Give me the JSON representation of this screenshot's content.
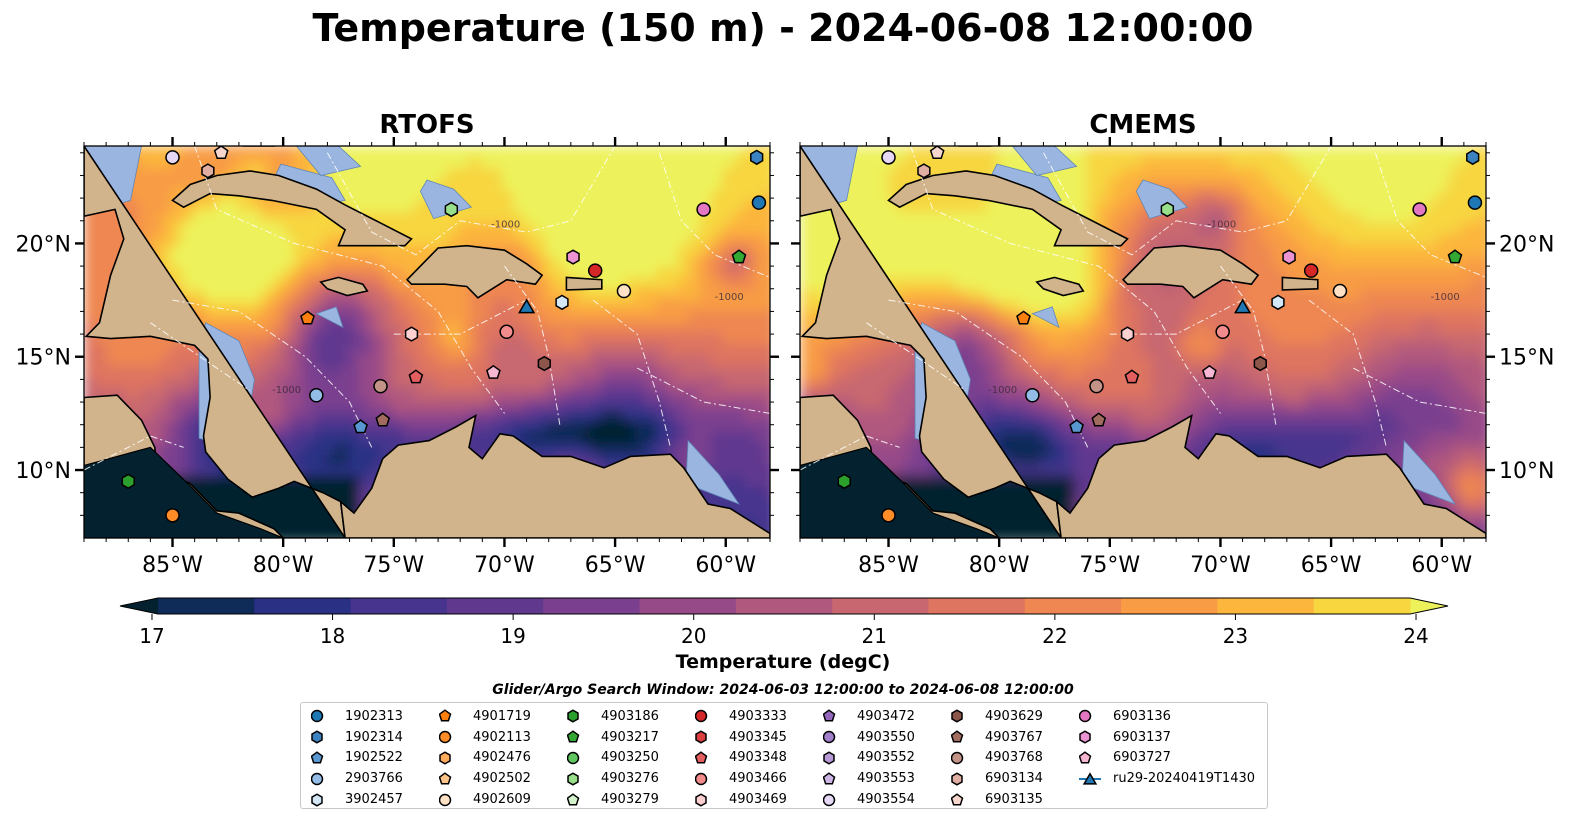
{
  "title": "Temperature (150 m) - 2024-06-08 12:00:00",
  "panels": [
    {
      "id": "rtofs",
      "title": "RTOFS"
    },
    {
      "id": "cmems",
      "title": "CMEMS"
    }
  ],
  "map": {
    "lon_range": [
      -89,
      -58
    ],
    "lat_range": [
      7,
      24.3
    ],
    "lon_ticks": [
      {
        "value": -85,
        "label": "85°W"
      },
      {
        "value": -80,
        "label": "80°W"
      },
      {
        "value": -75,
        "label": "75°W"
      },
      {
        "value": -70,
        "label": "70°W"
      },
      {
        "value": -65,
        "label": "65°W"
      },
      {
        "value": -60,
        "label": "60°W"
      }
    ],
    "lat_ticks": [
      {
        "value": 10,
        "label": "10°N"
      },
      {
        "value": 15,
        "label": "15°N"
      },
      {
        "value": 20,
        "label": "20°N"
      }
    ],
    "contour_label": "-1000",
    "colors": {
      "land": "#d2b48c",
      "shelf": "#9ab6e0",
      "coast": "#000000"
    }
  },
  "colorbar": {
    "label": "Temperature (degC)",
    "min": 16.5,
    "max": 24.5,
    "ticks": [
      {
        "value": 17,
        "label": "17"
      },
      {
        "value": 18,
        "label": "18"
      },
      {
        "value": 19,
        "label": "19"
      },
      {
        "value": 20,
        "label": "20"
      },
      {
        "value": 21,
        "label": "21"
      },
      {
        "value": 22,
        "label": "22"
      },
      {
        "value": 23,
        "label": "23"
      },
      {
        "value": 24,
        "label": "24"
      }
    ],
    "colors": [
      "#03212e",
      "#0f2b58",
      "#2a3185",
      "#46348e",
      "#60398f",
      "#7a3f8f",
      "#974a88",
      "#b1587e",
      "#c86770",
      "#de7561",
      "#ee8751",
      "#f89c45",
      "#fcb53d",
      "#f7d63f",
      "#edf25b"
    ]
  },
  "search_window": "Glider/Argo Search Window: 2024-06-03 12:00:00 to 2024-06-08 12:00:00",
  "legend": [
    {
      "label": "1902313",
      "marker": "circle",
      "color": "#1f77b4"
    },
    {
      "label": "1902314",
      "marker": "hexagon",
      "color": "#3b83c0"
    },
    {
      "label": "1902522",
      "marker": "pentagon",
      "color": "#5897d0"
    },
    {
      "label": "2903766",
      "marker": "circle",
      "color": "#93bde6"
    },
    {
      "label": "3902457",
      "marker": "hexagon",
      "color": "#d4e7f7"
    },
    {
      "label": "4901719",
      "marker": "pentagon",
      "color": "#ff7f0e"
    },
    {
      "label": "4902113",
      "marker": "circle",
      "color": "#ff8c26"
    },
    {
      "label": "4902476",
      "marker": "hexagon",
      "color": "#ffab5e"
    },
    {
      "label": "4902502",
      "marker": "pentagon",
      "color": "#ffc48a"
    },
    {
      "label": "4902609",
      "marker": "circle",
      "color": "#ffe1c6"
    },
    {
      "label": "4903186",
      "marker": "hexagon",
      "color": "#2ca02c"
    },
    {
      "label": "4903217",
      "marker": "pentagon",
      "color": "#33a833"
    },
    {
      "label": "4903250",
      "marker": "circle",
      "color": "#5fc55f"
    },
    {
      "label": "4903276",
      "marker": "hexagon",
      "color": "#98df8a"
    },
    {
      "label": "4903279",
      "marker": "pentagon",
      "color": "#d4f3cc"
    },
    {
      "label": "4903333",
      "marker": "circle",
      "color": "#d62728"
    },
    {
      "label": "4903345",
      "marker": "hexagon",
      "color": "#dc3d3e"
    },
    {
      "label": "4903348",
      "marker": "pentagon",
      "color": "#e25e5f"
    },
    {
      "label": "4903466",
      "marker": "circle",
      "color": "#f28b8b"
    },
    {
      "label": "4903469",
      "marker": "hexagon",
      "color": "#fcd0d0"
    },
    {
      "label": "4903472",
      "marker": "pentagon",
      "color": "#9467bd"
    },
    {
      "label": "4903550",
      "marker": "circle",
      "color": "#a17fcb"
    },
    {
      "label": "4903552",
      "marker": "hexagon",
      "color": "#b89ad9"
    },
    {
      "label": "4903553",
      "marker": "pentagon",
      "color": "#cdb6e6"
    },
    {
      "label": "4903554",
      "marker": "circle",
      "color": "#e6d7f4"
    },
    {
      "label": "4903629",
      "marker": "hexagon",
      "color": "#8c564b"
    },
    {
      "label": "4903767",
      "marker": "pentagon",
      "color": "#a26b5f"
    },
    {
      "label": "4903768",
      "marker": "circle",
      "color": "#c49387"
    },
    {
      "label": "6903134",
      "marker": "hexagon",
      "color": "#e0aea2"
    },
    {
      "label": "6903135",
      "marker": "pentagon",
      "color": "#f6d6cd"
    },
    {
      "label": "6903136",
      "marker": "circle",
      "color": "#e377c2"
    },
    {
      "label": "6903137",
      "marker": "hexagon",
      "color": "#ec94d2"
    },
    {
      "label": "6903727",
      "marker": "pentagon",
      "color": "#f7b6d2"
    },
    {
      "label": "ru29-20240419T1430",
      "marker": "triangle",
      "color": "#1f77b4"
    }
  ],
  "floats": [
    {
      "id": "1902313",
      "lon": -58.5,
      "lat": 21.8
    },
    {
      "id": "1902314",
      "lon": -58.6,
      "lat": 23.8
    },
    {
      "id": "1902522",
      "lon": -76.5,
      "lat": 11.9
    },
    {
      "id": "2903766",
      "lon": -78.5,
      "lat": 13.3
    },
    {
      "id": "3902457",
      "lon": -67.4,
      "lat": 17.4
    },
    {
      "id": "4901719",
      "lon": -78.9,
      "lat": 16.7
    },
    {
      "id": "4902113",
      "lon": -85,
      "lat": 8.0
    },
    {
      "id": "4902609",
      "lon": -64.6,
      "lat": 17.9
    },
    {
      "id": "4903186",
      "lon": -87,
      "lat": 9.5
    },
    {
      "id": "4903217",
      "lon": -59.4,
      "lat": 19.4
    },
    {
      "id": "4903276",
      "lon": -72.4,
      "lat": 21.5
    },
    {
      "id": "4903333",
      "lon": -65.9,
      "lat": 18.8
    },
    {
      "id": "4903466",
      "lon": -69.9,
      "lat": 16.1
    },
    {
      "id": "4903348",
      "lon": -74,
      "lat": 14.1
    },
    {
      "id": "4903469",
      "lon": -74.2,
      "lat": 16.0
    },
    {
      "id": "4903629",
      "lon": -68.2,
      "lat": 14.7
    },
    {
      "id": "4903768",
      "lon": -75.6,
      "lat": 13.7
    },
    {
      "id": "4903767",
      "lon": -75.5,
      "lat": 12.2
    },
    {
      "id": "6903134",
      "lon": -83.4,
      "lat": 23.2
    },
    {
      "id": "6903135",
      "lon": -82.8,
      "lat": 24.0
    },
    {
      "id": "6903136",
      "lon": -61,
      "lat": 21.5
    },
    {
      "id": "6903137",
      "lon": -66.9,
      "lat": 19.4
    },
    {
      "id": "6903727",
      "lon": -70.5,
      "lat": 14.3
    },
    {
      "id": "4903554",
      "lon": -85.0,
      "lat": 23.8
    }
  ],
  "glider": {
    "id": "ru29-20240419T1430",
    "lon": -69,
    "lat": 17.2
  }
}
